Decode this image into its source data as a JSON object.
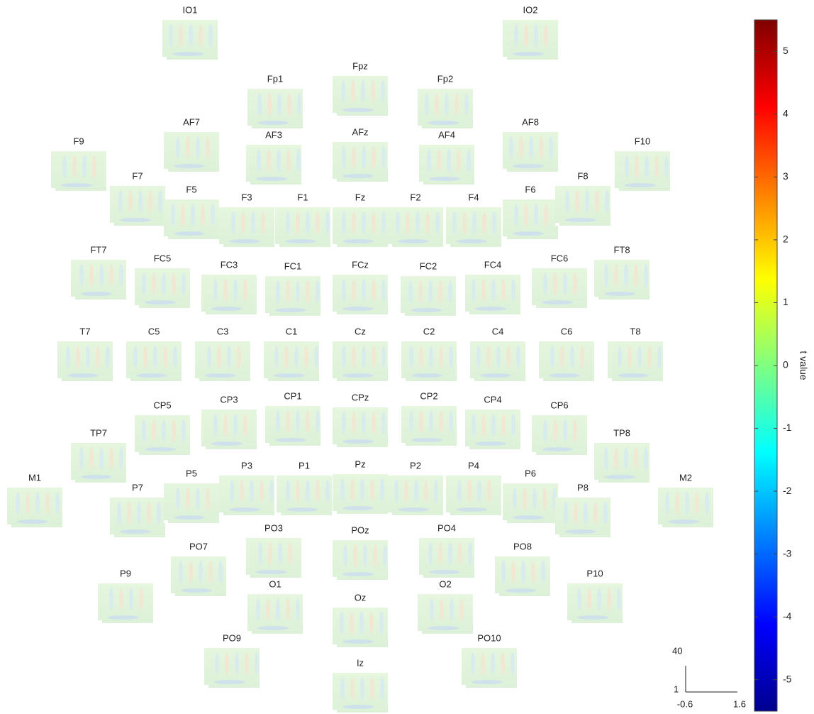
{
  "chart_data": {
    "type": "topoplot",
    "electrodes": [
      "IO1",
      "IO2",
      "Fp1",
      "Fpz",
      "Fp2",
      "AF7",
      "AF3",
      "AFz",
      "AF4",
      "AF8",
      "F9",
      "F10",
      "F7",
      "F5",
      "F3",
      "F1",
      "Fz",
      "F2",
      "F4",
      "F6",
      "F8",
      "FT7",
      "FC5",
      "FC3",
      "FC1",
      "FCz",
      "FC2",
      "FC4",
      "FC6",
      "FT8",
      "T7",
      "C5",
      "C3",
      "C1",
      "Cz",
      "C2",
      "C4",
      "C6",
      "T8",
      "TP7",
      "CP5",
      "CP3",
      "CP1",
      "CPz",
      "CP2",
      "CP4",
      "CP6",
      "TP8",
      "M1",
      "P7",
      "P5",
      "P3",
      "P1",
      "Pz",
      "P2",
      "P4",
      "P6",
      "P8",
      "M2",
      "PO3",
      "POz",
      "PO4",
      "PO7",
      "PO8",
      "P9",
      "P10",
      "O1",
      "Oz",
      "O2",
      "PO9",
      "PO10",
      "Iz"
    ],
    "colorbar": {
      "label": "t value",
      "lim": [
        -5.5,
        5.5
      ],
      "ticks": [
        -5,
        -4,
        -3,
        -2,
        -1,
        0,
        1,
        2,
        3,
        4,
        5
      ]
    },
    "scale_bar": {
      "freq": [
        1,
        40
      ],
      "time": [
        -0.6,
        1.6
      ]
    }
  }
}
